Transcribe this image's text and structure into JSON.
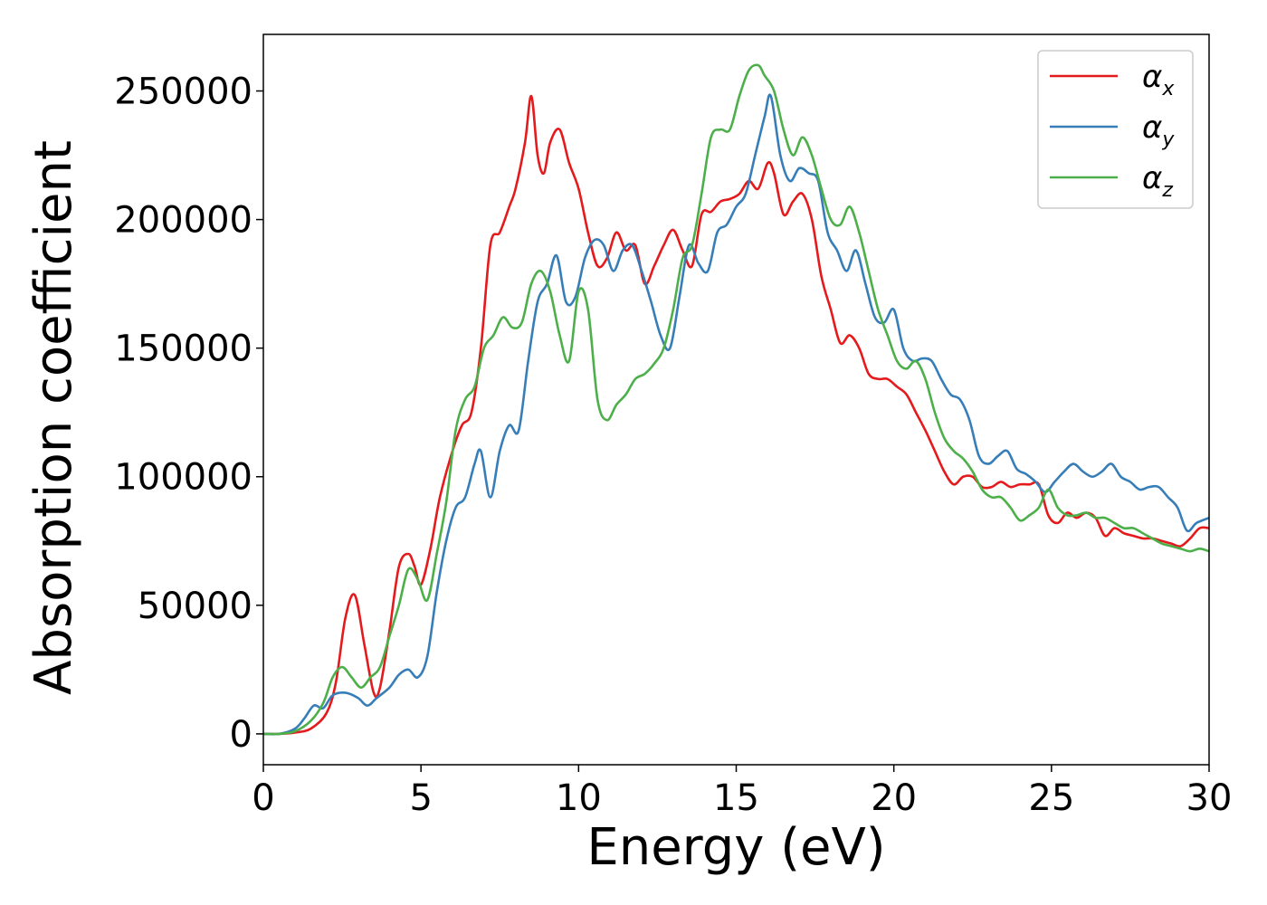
{
  "chart_data": {
    "type": "line",
    "title": "",
    "xlabel": "Energy (eV)",
    "ylabel": "Absorption coefficient",
    "xlim": [
      0,
      30
    ],
    "ylim": [
      -12000,
      272000
    ],
    "xticks": [
      0,
      5,
      10,
      15,
      20,
      25,
      30
    ],
    "xtick_labels": [
      "0",
      "5",
      "10",
      "15",
      "20",
      "25",
      "30"
    ],
    "yticks": [
      0,
      50000,
      100000,
      150000,
      200000,
      250000
    ],
    "ytick_labels": [
      "0",
      "50000",
      "100000",
      "150000",
      "200000",
      "250000"
    ],
    "grid": false,
    "legend": "top-right",
    "series": [
      {
        "name": "αx",
        "name_base": "α",
        "name_sub": "x",
        "color": "#e41a1c",
        "x": [
          0,
          0.5,
          1,
          1.5,
          2,
          2.3,
          2.6,
          2.9,
          3.2,
          3.5,
          3.7,
          4,
          4.3,
          4.6,
          4.8,
          5,
          5.3,
          5.6,
          6,
          6.3,
          6.6,
          6.9,
          7.2,
          7.5,
          7.8,
          8,
          8.3,
          8.5,
          8.7,
          8.9,
          9.1,
          9.4,
          9.7,
          10,
          10.3,
          10.6,
          10.9,
          11.2,
          11.5,
          11.8,
          12.1,
          12.4,
          12.7,
          13,
          13.3,
          13.6,
          13.9,
          14.2,
          14.5,
          14.8,
          15.1,
          15.4,
          15.7,
          16,
          16.2,
          16.5,
          16.8,
          17.1,
          17.4,
          17.7,
          18,
          18.3,
          18.6,
          18.9,
          19.2,
          19.5,
          19.8,
          20.1,
          20.4,
          20.7,
          21,
          21.3,
          21.6,
          21.9,
          22.2,
          22.5,
          22.8,
          23.1,
          23.4,
          23.7,
          24,
          24.3,
          24.6,
          24.9,
          25.2,
          25.5,
          25.8,
          26.1,
          26.4,
          26.7,
          27,
          27.3,
          27.6,
          27.9,
          28.2,
          28.5,
          28.8,
          29.1,
          29.4,
          29.7,
          30
        ],
        "y": [
          0,
          0,
          500,
          2000,
          8000,
          20000,
          45000,
          54000,
          35000,
          16000,
          18000,
          40000,
          65000,
          70000,
          65000,
          58000,
          72000,
          92000,
          110000,
          120000,
          125000,
          150000,
          190000,
          195000,
          205000,
          212000,
          230000,
          248000,
          225000,
          218000,
          230000,
          235000,
          222000,
          212000,
          195000,
          182000,
          185000,
          195000,
          188000,
          190000,
          175000,
          182000,
          190000,
          196000,
          188000,
          182000,
          202000,
          203000,
          207000,
          208000,
          210000,
          215000,
          212000,
          222000,
          218000,
          202000,
          207000,
          210000,
          200000,
          178000,
          165000,
          152000,
          155000,
          150000,
          140000,
          138000,
          138000,
          135000,
          132000,
          125000,
          118000,
          110000,
          102000,
          97000,
          100000,
          100000,
          96000,
          96000,
          98000,
          96000,
          97000,
          97000,
          97000,
          85000,
          82000,
          86000,
          84000,
          86000,
          84000,
          77000,
          80000,
          78000,
          77000,
          76000,
          76000,
          75000,
          74000,
          73000,
          76000,
          80000,
          80000
        ]
      },
      {
        "name": "αy",
        "name_base": "α",
        "name_sub": "y",
        "color": "#377eb8",
        "x": [
          0,
          0.5,
          1,
          1.3,
          1.6,
          1.9,
          2.2,
          2.6,
          3,
          3.3,
          3.6,
          4,
          4.3,
          4.6,
          4.9,
          5.2,
          5.5,
          5.8,
          6.1,
          6.4,
          6.7,
          6.9,
          7.2,
          7.5,
          7.8,
          8.1,
          8.4,
          8.7,
          9,
          9.3,
          9.6,
          9.9,
          10.2,
          10.5,
          10.8,
          11.1,
          11.4,
          11.7,
          12,
          12.3,
          12.6,
          12.9,
          13.2,
          13.5,
          13.8,
          14.1,
          14.4,
          14.7,
          15,
          15.3,
          15.6,
          15.9,
          16.1,
          16.4,
          16.7,
          17,
          17.3,
          17.6,
          17.9,
          18.2,
          18.5,
          18.8,
          19.1,
          19.4,
          19.7,
          20,
          20.3,
          20.6,
          20.9,
          21.2,
          21.5,
          21.8,
          22.1,
          22.4,
          22.7,
          23,
          23.3,
          23.6,
          23.9,
          24.2,
          24.5,
          24.8,
          25.1,
          25.4,
          25.7,
          26,
          26.3,
          26.6,
          26.9,
          27.2,
          27.5,
          27.8,
          28.1,
          28.4,
          28.7,
          29,
          29.3,
          29.6,
          30
        ],
        "y": [
          0,
          0,
          2000,
          6000,
          11000,
          10000,
          15000,
          16000,
          14000,
          11000,
          14000,
          18000,
          23000,
          25000,
          22000,
          30000,
          55000,
          75000,
          88000,
          92000,
          105000,
          110000,
          92000,
          110000,
          120000,
          118000,
          145000,
          168000,
          175000,
          186000,
          168000,
          170000,
          185000,
          192000,
          190000,
          180000,
          188000,
          190000,
          180000,
          168000,
          155000,
          150000,
          170000,
          190000,
          183000,
          180000,
          195000,
          198000,
          205000,
          210000,
          225000,
          240000,
          248000,
          225000,
          215000,
          220000,
          218000,
          215000,
          195000,
          188000,
          180000,
          188000,
          175000,
          162000,
          160000,
          165000,
          150000,
          145000,
          146000,
          145000,
          138000,
          132000,
          130000,
          122000,
          108000,
          105000,
          108000,
          110000,
          103000,
          101000,
          98000,
          94000,
          98000,
          102000,
          105000,
          102000,
          100000,
          102000,
          105000,
          100000,
          98000,
          95000,
          96000,
          96000,
          92000,
          88000,
          79000,
          82000,
          84000
        ]
      },
      {
        "name": "αz",
        "name_base": "α",
        "name_sub": "z",
        "color": "#4daf4a",
        "x": [
          0,
          0.5,
          1,
          1.5,
          1.9,
          2.2,
          2.5,
          2.8,
          3.1,
          3.4,
          3.7,
          4,
          4.3,
          4.6,
          4.9,
          5.2,
          5.5,
          5.8,
          6.1,
          6.4,
          6.7,
          7,
          7.3,
          7.6,
          7.9,
          8.2,
          8.5,
          8.8,
          9.1,
          9.4,
          9.7,
          10,
          10.3,
          10.6,
          10.9,
          11.2,
          11.5,
          11.8,
          12.1,
          12.4,
          12.7,
          13,
          13.3,
          13.6,
          13.9,
          14.2,
          14.5,
          14.8,
          15.1,
          15.4,
          15.7,
          15.9,
          16.2,
          16.5,
          16.8,
          17.1,
          17.4,
          17.7,
          18,
          18.3,
          18.6,
          18.9,
          19.2,
          19.5,
          19.8,
          20.1,
          20.4,
          20.7,
          21,
          21.3,
          21.6,
          21.9,
          22.2,
          22.5,
          22.8,
          23.1,
          23.4,
          23.7,
          24,
          24.3,
          24.6,
          24.9,
          25.2,
          25.5,
          25.8,
          26.1,
          26.4,
          26.7,
          27,
          27.3,
          27.6,
          27.9,
          28.2,
          28.5,
          28.8,
          29.1,
          29.4,
          29.7,
          30
        ],
        "y": [
          0,
          0,
          1000,
          5000,
          12000,
          22000,
          26000,
          22000,
          18000,
          22000,
          26000,
          38000,
          50000,
          64000,
          60000,
          52000,
          70000,
          90000,
          118000,
          130000,
          135000,
          150000,
          155000,
          162000,
          158000,
          160000,
          175000,
          180000,
          172000,
          155000,
          145000,
          172000,
          165000,
          130000,
          122000,
          128000,
          132000,
          138000,
          140000,
          144000,
          150000,
          165000,
          185000,
          190000,
          210000,
          232000,
          235000,
          235000,
          248000,
          258000,
          260000,
          256000,
          250000,
          235000,
          225000,
          232000,
          225000,
          212000,
          200000,
          198000,
          205000,
          195000,
          180000,
          165000,
          155000,
          145000,
          142000,
          145000,
          138000,
          125000,
          115000,
          110000,
          107000,
          102000,
          95000,
          92000,
          92000,
          88000,
          83000,
          85000,
          88000,
          95000,
          88000,
          85000,
          85000,
          86000,
          84000,
          84000,
          82000,
          80000,
          80000,
          78000,
          76000,
          74000,
          73000,
          72000,
          71000,
          72000,
          71000
        ]
      }
    ]
  }
}
